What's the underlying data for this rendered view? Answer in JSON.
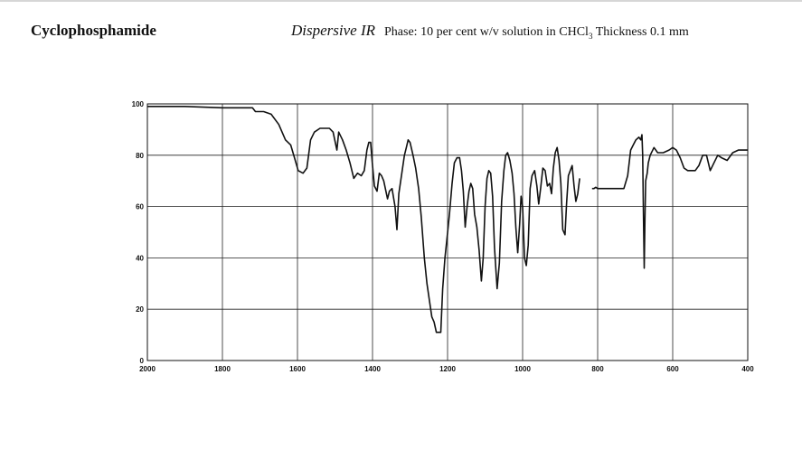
{
  "header": {
    "compound": "Cyclophosphamide",
    "method": "Dispersive IR",
    "phase_prefix": "Phase: 10 per cent w/v solution in CHCl",
    "phase_sub": "3",
    "phase_suffix": " Thickness 0.1 mm"
  },
  "chart_data": {
    "type": "line",
    "title": "",
    "xlabel": "",
    "ylabel": "",
    "xlim": [
      2000,
      400
    ],
    "ylim": [
      0,
      100
    ],
    "x_reversed": true,
    "grid": true,
    "x_ticks": [
      2000,
      1800,
      1600,
      1400,
      1200,
      1000,
      800,
      600,
      400
    ],
    "x_tick_labels": [
      "2000",
      "1800",
      "1600",
      "1400",
      "1200",
      "1000",
      "800",
      "600",
      "400"
    ],
    "y_ticks": [
      0,
      20,
      40,
      60,
      80,
      100
    ],
    "y_tick_labels": [
      "0",
      "20",
      "40",
      "60",
      "80",
      "100"
    ],
    "line_color": "#111111",
    "series": [
      {
        "segments": [
          [
            [
              2000,
              99
            ],
            [
              1900,
              99
            ],
            [
              1800,
              98.5
            ],
            [
              1720,
              98.5
            ],
            [
              1712,
              97
            ],
            [
              1690,
              97
            ],
            [
              1670,
              96
            ],
            [
              1650,
              92
            ],
            [
              1632,
              86
            ],
            [
              1618,
              84
            ],
            [
              1608,
              79
            ],
            [
              1598,
              74
            ],
            [
              1585,
              73
            ],
            [
              1575,
              75
            ],
            [
              1565,
              86
            ],
            [
              1555,
              89
            ],
            [
              1540,
              90.5
            ],
            [
              1515,
              90.5
            ],
            [
              1505,
              89
            ],
            [
              1495,
              82
            ],
            [
              1490,
              89
            ],
            [
              1480,
              86
            ],
            [
              1470,
              82
            ],
            [
              1460,
              77
            ],
            [
              1450,
              71
            ],
            [
              1440,
              73
            ],
            [
              1430,
              72
            ],
            [
              1422,
              74
            ],
            [
              1415,
              82
            ],
            [
              1410,
              85
            ],
            [
              1405,
              85
            ],
            [
              1400,
              76
            ],
            [
              1395,
              68
            ],
            [
              1388,
              66
            ],
            [
              1382,
              73
            ],
            [
              1376,
              72
            ],
            [
              1370,
              70
            ],
            [
              1360,
              63
            ],
            [
              1355,
              66
            ],
            [
              1348,
              67
            ],
            [
              1340,
              60
            ],
            [
              1335,
              51
            ],
            [
              1330,
              65
            ],
            [
              1322,
              73
            ],
            [
              1315,
              80
            ],
            [
              1310,
              83
            ],
            [
              1305,
              86
            ],
            [
              1300,
              85
            ],
            [
              1292,
              80
            ],
            [
              1285,
              75
            ],
            [
              1277,
              67
            ],
            [
              1270,
              56
            ],
            [
              1262,
              40
            ],
            [
              1255,
              30
            ],
            [
              1248,
              23
            ],
            [
              1242,
              17
            ],
            [
              1236,
              15
            ],
            [
              1230,
              11
            ],
            [
              1218,
              11
            ],
            [
              1213,
              28
            ],
            [
              1207,
              40
            ],
            [
              1202,
              47
            ],
            [
              1195,
              57
            ],
            [
              1188,
              69
            ],
            [
              1182,
              77
            ],
            [
              1175,
              79
            ],
            [
              1168,
              79
            ],
            [
              1163,
              74
            ],
            [
              1158,
              66
            ],
            [
              1153,
              52
            ],
            [
              1148,
              60
            ],
            [
              1143,
              66
            ],
            [
              1138,
              69
            ],
            [
              1133,
              67
            ],
            [
              1128,
              57
            ],
            [
              1122,
              52
            ],
            [
              1116,
              43
            ],
            [
              1110,
              31
            ],
            [
              1105,
              40
            ],
            [
              1100,
              60
            ],
            [
              1095,
              71
            ],
            [
              1090,
              74
            ],
            [
              1085,
              73
            ],
            [
              1080,
              64
            ],
            [
              1075,
              44
            ],
            [
              1068,
              28
            ],
            [
              1062,
              38
            ],
            [
              1056,
              62
            ],
            [
              1050,
              74
            ],
            [
              1045,
              80
            ],
            [
              1040,
              81
            ],
            [
              1034,
              78
            ],
            [
              1028,
              73
            ],
            [
              1023,
              65
            ],
            [
              1018,
              52
            ],
            [
              1013,
              42
            ],
            [
              1008,
              53
            ],
            [
              1004,
              64
            ],
            [
              1000,
              60
            ],
            [
              995,
              40
            ],
            [
              990,
              37
            ],
            [
              985,
              45
            ],
            [
              980,
              67
            ],
            [
              975,
              72
            ],
            [
              968,
              74
            ],
            [
              962,
              68
            ],
            [
              957,
              61
            ],
            [
              952,
              67
            ],
            [
              946,
              75
            ],
            [
              940,
              74
            ],
            [
              934,
              68
            ],
            [
              928,
              69
            ],
            [
              923,
              65
            ],
            [
              918,
              75
            ],
            [
              913,
              81
            ],
            [
              908,
              83
            ],
            [
              903,
              78
            ],
            [
              898,
              69
            ],
            [
              893,
              51
            ],
            [
              887,
              49
            ],
            [
              883,
              61
            ],
            [
              878,
              72
            ],
            [
              873,
              74
            ],
            [
              868,
              76
            ],
            [
              863,
              68
            ],
            [
              858,
              62
            ],
            [
              853,
              65
            ],
            [
              848,
              71
            ]
          ],
          [
            [
              815,
              67
            ],
            [
              810,
              67
            ],
            [
              805,
              67.5
            ],
            [
              800,
              67
            ],
            [
              730,
              67
            ],
            [
              720,
              72
            ],
            [
              712,
              82
            ],
            [
              705,
              84
            ],
            [
              698,
              86
            ],
            [
              690,
              87
            ],
            [
              685,
              86
            ],
            [
              682,
              88
            ],
            [
              680,
              80
            ],
            [
              678,
              58
            ],
            [
              676,
              36
            ],
            [
              674,
              55
            ],
            [
              672,
              70
            ],
            [
              668,
              73
            ],
            [
              665,
              77
            ],
            [
              660,
              80
            ],
            [
              650,
              83
            ],
            [
              640,
              81
            ],
            [
              625,
              81
            ],
            [
              610,
              82
            ],
            [
              600,
              83
            ],
            [
              590,
              82
            ],
            [
              580,
              79
            ],
            [
              570,
              75
            ],
            [
              560,
              74
            ],
            [
              540,
              74
            ],
            [
              530,
              76
            ],
            [
              520,
              80
            ],
            [
              510,
              80
            ],
            [
              500,
              74
            ],
            [
              490,
              77
            ],
            [
              480,
              80
            ],
            [
              470,
              79
            ],
            [
              455,
              78
            ],
            [
              440,
              81
            ],
            [
              425,
              82
            ],
            [
              400,
              82
            ]
          ]
        ]
      }
    ]
  }
}
